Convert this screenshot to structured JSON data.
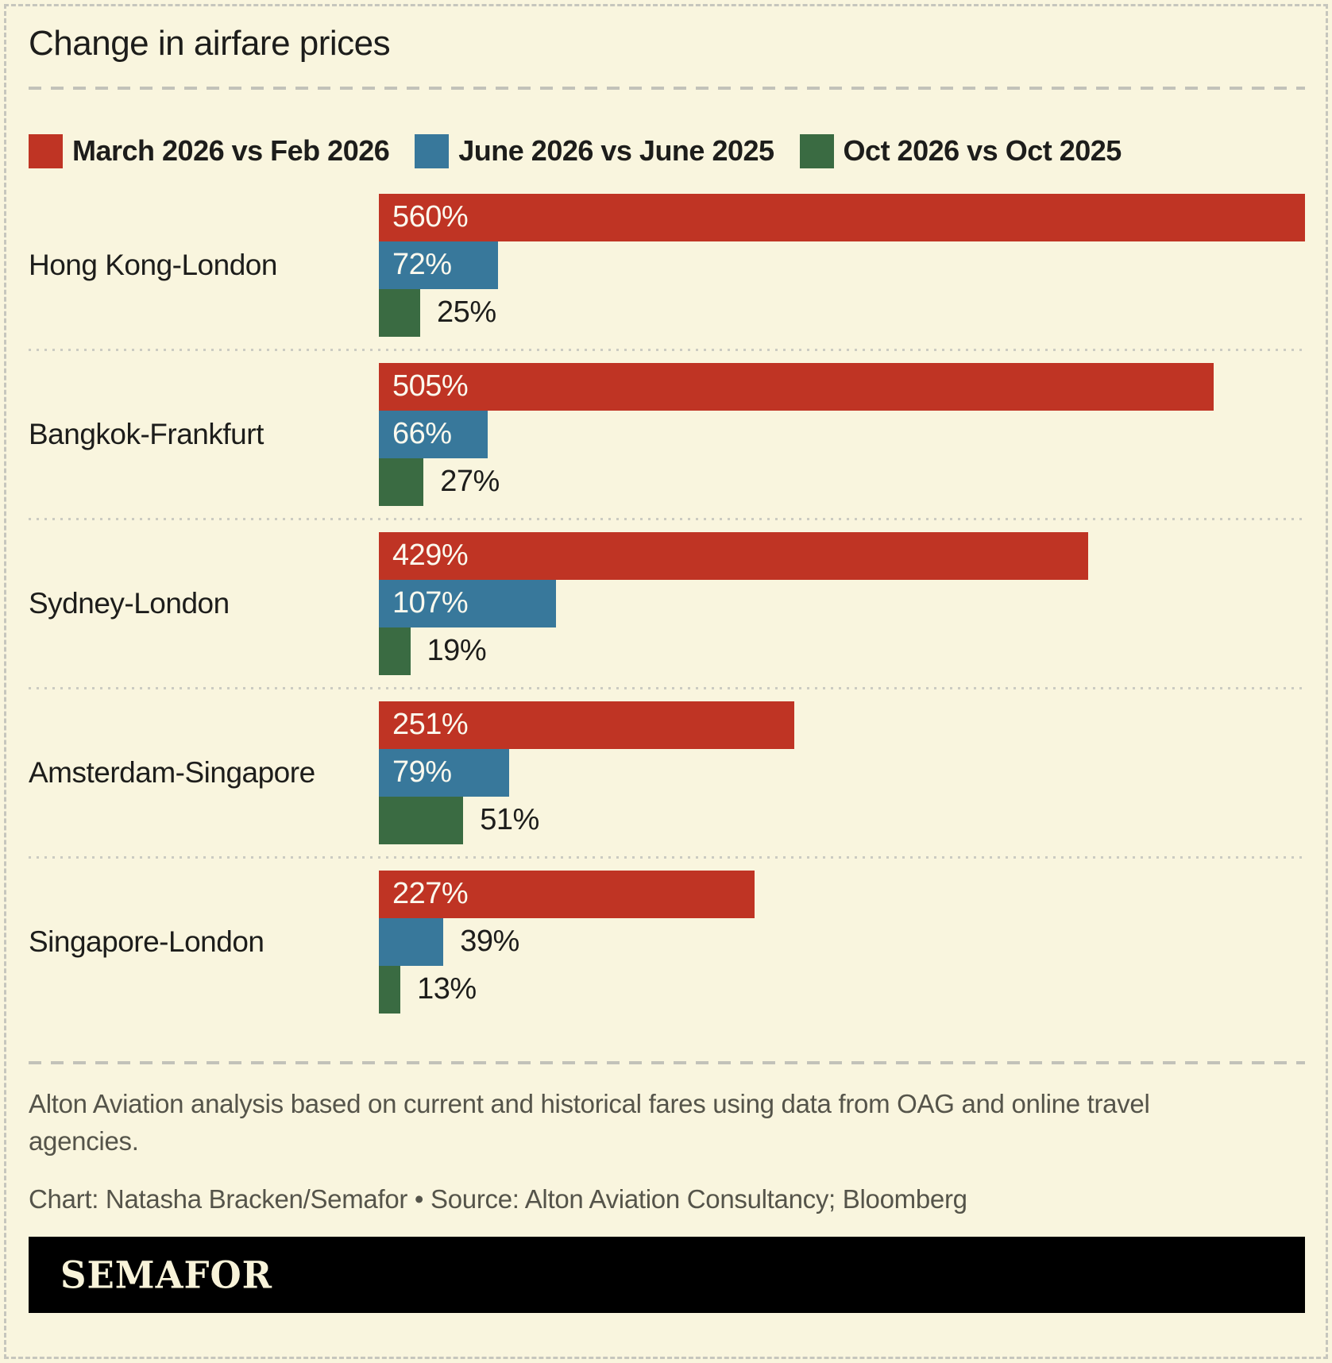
{
  "title": "Change in airfare prices",
  "colors": {
    "background": "#f9f5de",
    "frame_dash": "#c6c6bd",
    "text_dark": "#1d1d1b",
    "text_muted": "#55544a",
    "series_red": "#bf3424",
    "series_blue": "#38789b",
    "series_green": "#3a6b42",
    "logo_bar_bg": "#000000",
    "logo_text": "#f8f3d9",
    "bar_label_light": "#fbf9ee"
  },
  "legend": {
    "items": [
      {
        "label": "March 2026 vs Feb 2026",
        "color": "#bf3424"
      },
      {
        "label": "June 2026 vs June 2025",
        "color": "#38789b"
      },
      {
        "label": "Oct 2026 vs Oct 2025",
        "color": "#3a6b42"
      }
    ]
  },
  "chart_data": {
    "type": "bar",
    "orientation": "horizontal",
    "value_suffix": "%",
    "axis_max": 560,
    "grid": false,
    "legend_position": "top",
    "categories": [
      "Hong Kong-London",
      "Bangkok-Frankfurt",
      "Sydney-London",
      "Amsterdam-Singapore",
      "Singapore-London"
    ],
    "series": [
      {
        "name": "March 2026 vs Feb 2026",
        "color": "#bf3424",
        "values": [
          560,
          505,
          429,
          251,
          227
        ]
      },
      {
        "name": "June 2026 vs June 2025",
        "color": "#38789b",
        "values": [
          72,
          66,
          107,
          79,
          39
        ]
      },
      {
        "name": "Oct 2026 vs Oct 2025",
        "color": "#3a6b42",
        "values": [
          25,
          27,
          19,
          51,
          13
        ]
      }
    ]
  },
  "footer": {
    "note": "Alton Aviation analysis based on current and historical fares using data from OAG and online travel agencies.",
    "credit": "Chart: Natasha Bracken/Semafor • Source: Alton Aviation Consultancy; Bloomberg",
    "logo": "SEMAFOR"
  }
}
